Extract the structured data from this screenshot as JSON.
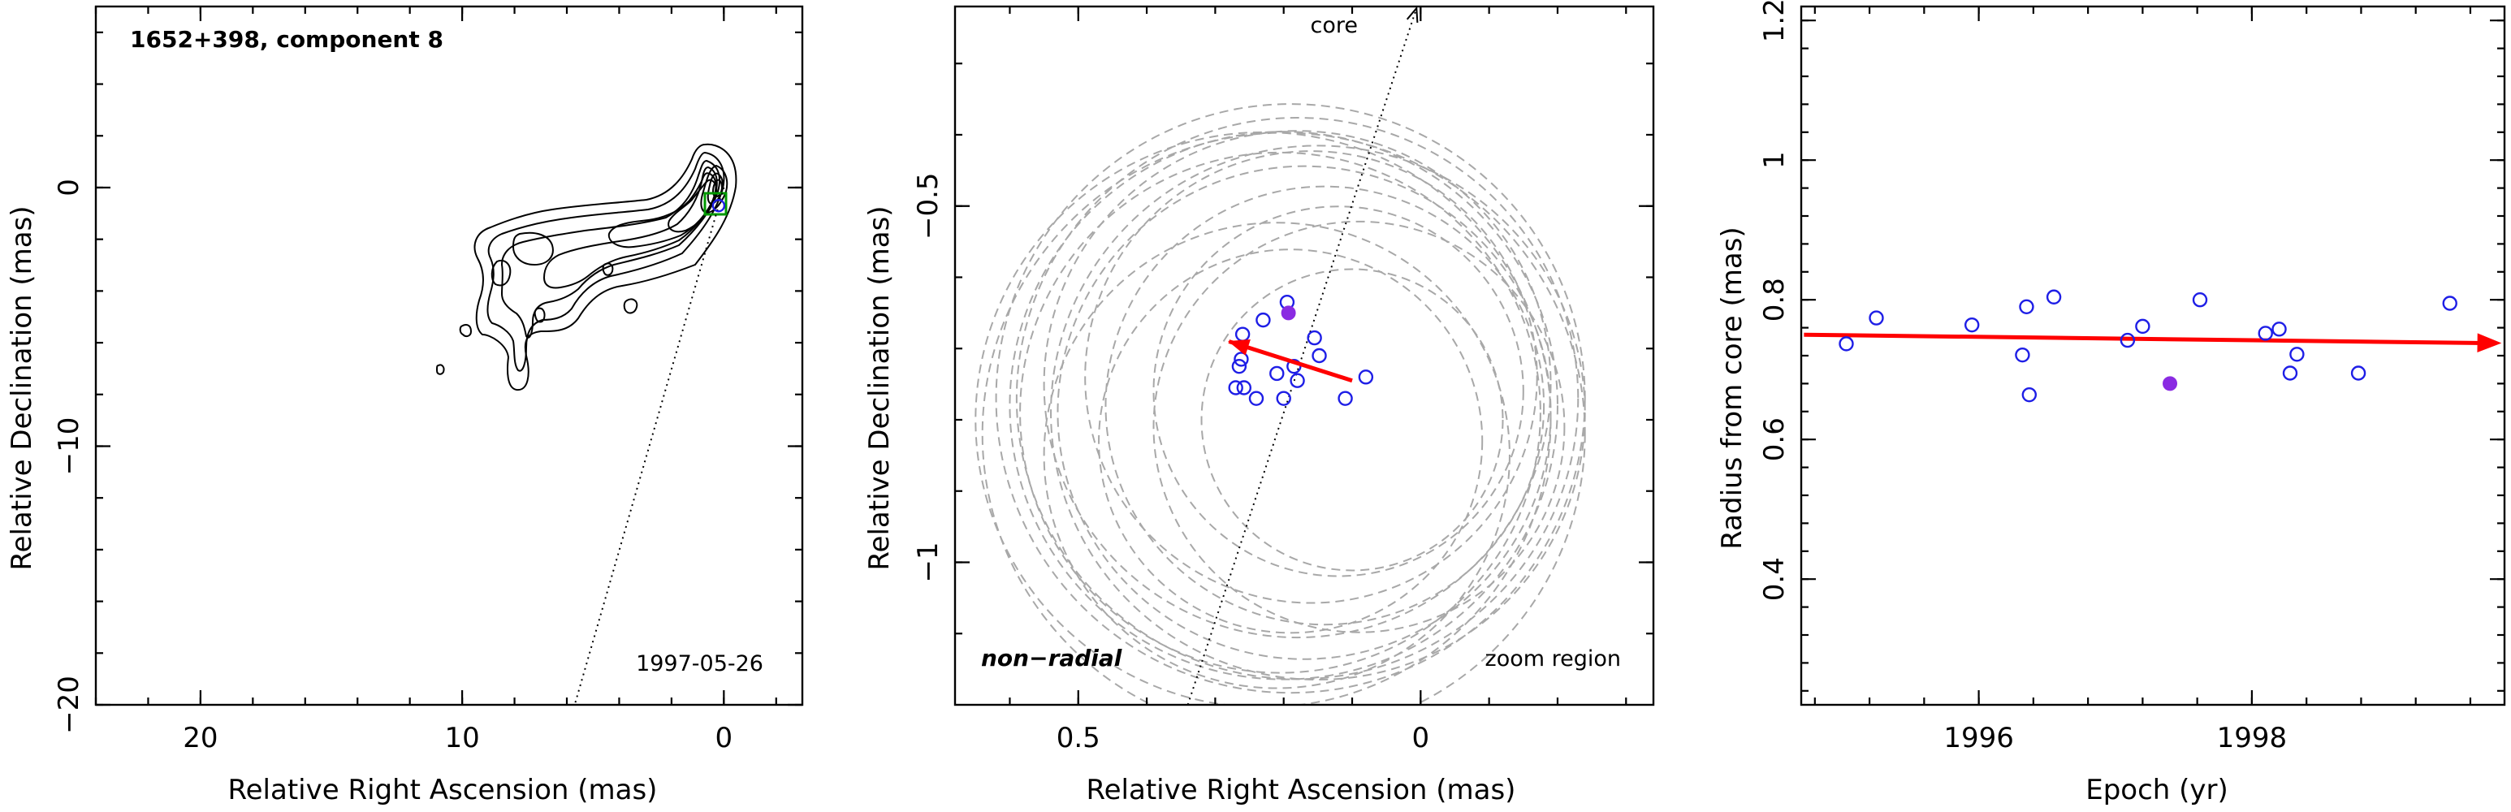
{
  "colors": {
    "open_marker": "#1e1ee6",
    "filled_marker": "#8a2be2",
    "motion_arrow": "#ff0000",
    "beam_box": "#009900",
    "fit_rings": "#a8a8a8"
  },
  "chart_data": [
    {
      "type": "contour",
      "title": "1652+398, component 8",
      "epoch_label": "1997-05-26",
      "xlabel": "Relative Right Ascension (mas)",
      "ylabel": "Relative Declination (mas)",
      "xlim": [
        24,
        -3
      ],
      "ylim": [
        -20,
        7
      ],
      "x_inverted": true,
      "xticks": [
        {
          "v": 20,
          "label": "20"
        },
        {
          "v": 10,
          "label": "10"
        },
        {
          "v": 0,
          "label": "0"
        }
      ],
      "yticks": [
        {
          "v": 0,
          "label": "0"
        },
        {
          "v": -10,
          "label": "−10"
        },
        {
          "v": -20,
          "label": "−20"
        }
      ],
      "core_direction_line": {
        "from": [
          0,
          0
        ],
        "to": [
          5.7,
          -20
        ]
      },
      "component_marker": {
        "x": 0.2,
        "y": -0.7
      }
    },
    {
      "type": "scatter",
      "label_left": "non−radial",
      "label_right": "zoom region",
      "core_arrow_label": "core",
      "xlabel": "Relative Right Ascension (mas)",
      "ylabel": "Relative Declination (mas)",
      "xlim": [
        0.68,
        -0.34
      ],
      "ylim": [
        -1.2,
        -0.22
      ],
      "x_inverted": true,
      "xticks": [
        {
          "v": 0.5,
          "label": "0.5"
        },
        {
          "v": 0,
          "label": "0"
        }
      ],
      "yticks": [
        {
          "v": -0.5,
          "label": "−0.5"
        },
        {
          "v": -1,
          "label": "−1"
        }
      ],
      "points": [
        {
          "x": 0.26,
          "y": -0.68
        },
        {
          "x": 0.23,
          "y": -0.66
        },
        {
          "x": 0.195,
          "y": -0.635
        },
        {
          "x": 0.155,
          "y": -0.685
        },
        {
          "x": 0.148,
          "y": -0.71
        },
        {
          "x": 0.262,
          "y": -0.715
        },
        {
          "x": 0.265,
          "y": -0.725
        },
        {
          "x": 0.21,
          "y": -0.735
        },
        {
          "x": 0.185,
          "y": -0.725
        },
        {
          "x": 0.18,
          "y": -0.745
        },
        {
          "x": 0.08,
          "y": -0.74
        },
        {
          "x": 0.27,
          "y": -0.755
        },
        {
          "x": 0.258,
          "y": -0.755
        },
        {
          "x": 0.24,
          "y": -0.77
        },
        {
          "x": 0.2,
          "y": -0.77
        },
        {
          "x": 0.11,
          "y": -0.77
        }
      ],
      "highlight_point": {
        "x": 0.193,
        "y": -0.65
      },
      "motion_vector": {
        "from": [
          0.1,
          -0.745
        ],
        "to": [
          0.28,
          -0.69
        ]
      },
      "core_direction_line": {
        "from": [
          0.34,
          -1.2
        ],
        "to": [
          0.006,
          -0.22
        ]
      },
      "fit_rings": [
        {
          "cx": 0.205,
          "cy": -0.79,
          "r": 0.38
        },
        {
          "cx": 0.2,
          "cy": -0.78,
          "r": 0.4
        },
        {
          "cx": 0.19,
          "cy": -0.77,
          "r": 0.43
        },
        {
          "cx": 0.18,
          "cy": -0.77,
          "r": 0.41
        },
        {
          "cx": 0.2,
          "cy": -0.82,
          "r": 0.44
        },
        {
          "cx": 0.17,
          "cy": -0.79,
          "r": 0.36
        },
        {
          "cx": 0.23,
          "cy": -0.8,
          "r": 0.42
        },
        {
          "cx": 0.18,
          "cy": -0.75,
          "r": 0.37
        },
        {
          "cx": 0.14,
          "cy": -0.78,
          "r": 0.32
        },
        {
          "cx": 0.12,
          "cy": -0.76,
          "r": 0.27
        },
        {
          "cx": 0.1,
          "cy": -0.8,
          "r": 0.22
        },
        {
          "cx": 0.09,
          "cy": -0.81,
          "r": 0.3
        },
        {
          "cx": 0.21,
          "cy": -0.85,
          "r": 0.34
        },
        {
          "cx": 0.15,
          "cy": -0.79,
          "r": 0.39
        },
        {
          "cx": 0.19,
          "cy": -0.83,
          "r": 0.28
        },
        {
          "cx": 0.16,
          "cy": -0.74,
          "r": 0.33
        }
      ]
    },
    {
      "type": "scatter",
      "xlabel": "Epoch (yr)",
      "ylabel": "Radius from core (mas)",
      "xlim": [
        1994.7,
        1999.85
      ],
      "ylim": [
        0.22,
        1.22
      ],
      "xticks": [
        {
          "v": 1996,
          "label": "1996"
        },
        {
          "v": 1998,
          "label": "1998"
        }
      ],
      "yticks": [
        {
          "v": 0.4,
          "label": "0.4"
        },
        {
          "v": 0.6,
          "label": "0.6"
        },
        {
          "v": 0.8,
          "label": "0.8"
        },
        {
          "v": 1,
          "label": "1"
        },
        {
          "v": 1.2,
          "label": "1.2"
        }
      ],
      "points": [
        {
          "x": 1995.03,
          "y": 0.737
        },
        {
          "x": 1995.25,
          "y": 0.774
        },
        {
          "x": 1995.95,
          "y": 0.764
        },
        {
          "x": 1996.32,
          "y": 0.721
        },
        {
          "x": 1996.35,
          "y": 0.79
        },
        {
          "x": 1996.37,
          "y": 0.664
        },
        {
          "x": 1996.55,
          "y": 0.804
        },
        {
          "x": 1997.09,
          "y": 0.742
        },
        {
          "x": 1997.2,
          "y": 0.762
        },
        {
          "x": 1997.62,
          "y": 0.8
        },
        {
          "x": 1998.1,
          "y": 0.752
        },
        {
          "x": 1998.2,
          "y": 0.758
        },
        {
          "x": 1998.28,
          "y": 0.695
        },
        {
          "x": 1998.33,
          "y": 0.722
        },
        {
          "x": 1998.78,
          "y": 0.695
        },
        {
          "x": 1999.45,
          "y": 0.795
        }
      ],
      "highlight_point": {
        "x": 1997.4,
        "y": 0.68
      },
      "trend_arrow": {
        "from": [
          1994.72,
          0.75
        ],
        "to": [
          1999.82,
          0.738
        ]
      }
    }
  ]
}
